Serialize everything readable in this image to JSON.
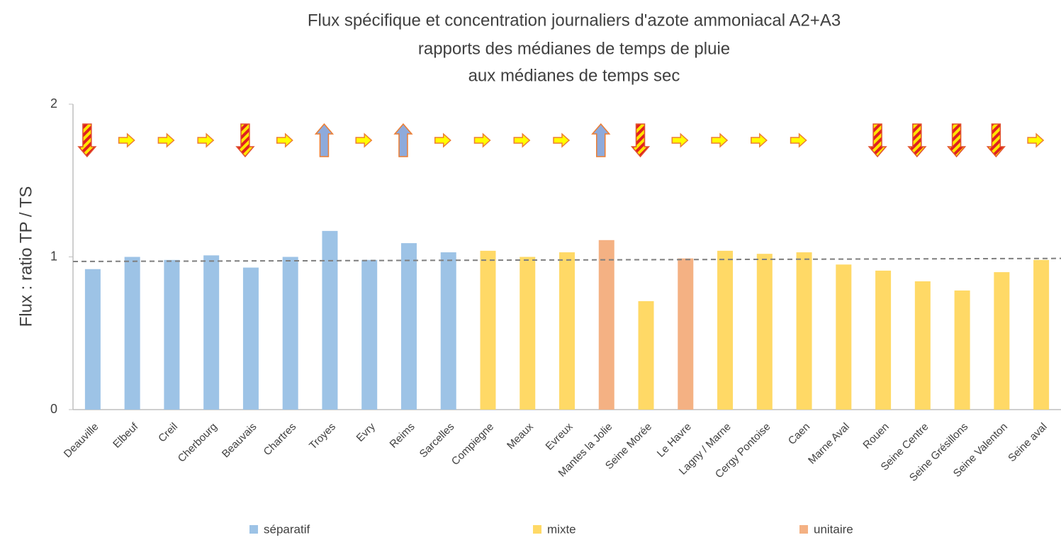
{
  "chart_data": {
    "type": "bar",
    "title": [
      "Flux spécifique et concentration journaliers d'azote ammoniacal A2+A3",
      "rapports des médianes de temps de pluie",
      "aux médianes de temps sec"
    ],
    "y_label": "Flux : ratio  TP / TS",
    "categories": [
      "Deauville",
      "Elbeuf",
      "Creil",
      "Cherbourg",
      "Beauvais",
      "Chartres",
      "Troyes",
      "Evry",
      "Reims",
      "Sarcelles",
      "Compiegne",
      "Meaux",
      "Evreux",
      "Mantes la Jolie",
      "Seine Morée",
      "Le Havre",
      "Lagny / Marne",
      "Cergy Pontoise",
      "Caen",
      "Marne Aval",
      "Rouen",
      "Seine Centre",
      "Seine Grésillons",
      "Seine Valenton",
      "Seine aval"
    ],
    "series": [
      {
        "name": "séparatif",
        "color": "#9dc3e6",
        "values": [
          0.92,
          1.0,
          0.98,
          1.01,
          0.93,
          1.0,
          1.17,
          0.98,
          1.09,
          1.03,
          null,
          null,
          null,
          null,
          null,
          null,
          null,
          null,
          null,
          null,
          null,
          null,
          null,
          null,
          null
        ]
      },
      {
        "name": "mixte",
        "color": "#ffd966",
        "values": [
          null,
          null,
          null,
          null,
          null,
          null,
          null,
          null,
          null,
          null,
          1.04,
          1.0,
          1.03,
          null,
          0.71,
          null,
          1.04,
          1.02,
          1.03,
          0.95,
          0.91,
          0.84,
          0.78,
          0.9,
          0.98
        ]
      },
      {
        "name": "unitaire",
        "color": "#f4b183",
        "values": [
          null,
          null,
          null,
          null,
          null,
          null,
          null,
          null,
          null,
          null,
          null,
          null,
          null,
          1.11,
          null,
          0.99,
          null,
          null,
          null,
          null,
          null,
          null,
          null,
          null,
          null
        ]
      }
    ],
    "trend_line": [
      0.97,
      0.99
    ],
    "arrows": [
      "down",
      "right",
      "right",
      "right",
      "down",
      "right",
      "up",
      "right",
      "up",
      "right",
      "right",
      "right",
      "right",
      "up",
      "down",
      "right",
      "right",
      "right",
      "right",
      null,
      "down",
      "down",
      "down",
      "down",
      "right"
    ],
    "ylim": [
      0,
      2
    ],
    "yticks": [
      0,
      1,
      2
    ],
    "grid": false
  }
}
